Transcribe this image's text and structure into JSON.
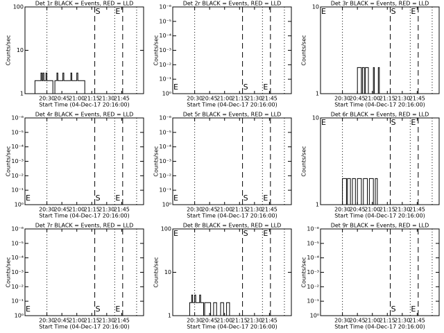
{
  "chart_data": [
    {
      "type": "line",
      "title": "Det 1r BLACK = Events, RED = LLD",
      "x_label": "Start Time (04-Dec-17 20:16:00)",
      "y_label": "Counts/sec",
      "log_y": true,
      "xlim": [
        -8,
        111
      ],
      "xticks": [
        {
          "value": 14,
          "label": "20:30"
        },
        {
          "value": 29,
          "label": "20:45"
        },
        {
          "value": 44,
          "label": "21:00"
        },
        {
          "value": 59,
          "label": "21:15"
        },
        {
          "value": 74,
          "label": "21:30"
        },
        {
          "value": 89,
          "label": "21:45"
        }
      ],
      "ylim": [
        1,
        100
      ],
      "yticks": [
        1,
        10,
        100
      ],
      "series": [
        {
          "color": "#000000",
          "x": [
            2,
            2,
            8,
            8,
            9,
            9,
            10,
            10,
            11,
            11,
            13,
            13,
            14,
            14,
            20,
            20,
            22,
            22,
            24,
            24,
            25,
            25,
            30,
            30,
            31,
            31,
            38,
            38,
            39,
            39,
            44,
            44,
            45,
            45,
            52,
            52
          ],
          "values": [
            1,
            2,
            2,
            3,
            3,
            2,
            2,
            3,
            3,
            2,
            2,
            3,
            3,
            2,
            2,
            1,
            1,
            2,
            2,
            3,
            3,
            2,
            2,
            3,
            3,
            2,
            2,
            3,
            3,
            2,
            2,
            3,
            3,
            2,
            2,
            1
          ]
        }
      ],
      "vlines": [
        {
          "x": 14,
          "style": "dotted"
        },
        {
          "x": 62,
          "style": "dashed"
        },
        {
          "x": 82,
          "style": "dotted"
        },
        {
          "x": 90,
          "style": "dashed"
        },
        {
          "x": 104,
          "style": "dotted"
        }
      ],
      "annotations": [
        {
          "text": "S",
          "x": 62
        },
        {
          "text": "E",
          "x": 82
        }
      ],
      "annotation_position": "top"
    },
    {
      "type": "line",
      "title": "Det 2r BLACK = Events, RED = LLD",
      "x_label": "Start Time (04-Dec-17 20:16:00)",
      "y_label": "Counts/sec",
      "log_y": true,
      "xlim": [
        -8,
        111
      ],
      "xticks": [
        {
          "value": 14,
          "label": "20:30"
        },
        {
          "value": 29,
          "label": "20:45"
        },
        {
          "value": 44,
          "label": "21:00"
        },
        {
          "value": 59,
          "label": "21:15"
        },
        {
          "value": 74,
          "label": "21:30"
        },
        {
          "value": 89,
          "label": "21:45"
        }
      ],
      "ylim": [
        1,
        1e-06
      ],
      "yticks": [
        {
          "value": 1,
          "label": "10⁰"
        },
        {
          "value": 0.1,
          "label": "10⁻¹"
        },
        {
          "value": 0.01,
          "label": "10⁻²"
        },
        {
          "value": 0.001,
          "label": "10⁻³"
        },
        {
          "value": 0.0001,
          "label": "10⁻⁴"
        },
        {
          "value": 1e-05,
          "label": "10⁻⁵"
        },
        {
          "value": 1e-06,
          "label": "10⁻⁶"
        }
      ],
      "series": [],
      "vlines": [
        {
          "x": 14,
          "style": "dotted"
        },
        {
          "x": 62,
          "style": "dashed"
        },
        {
          "x": 82,
          "style": "dotted"
        },
        {
          "x": 90,
          "style": "dashed"
        },
        {
          "x": 104,
          "style": "dotted"
        }
      ],
      "annotations": [
        {
          "text": "E",
          "x": -8
        },
        {
          "text": "S",
          "x": 62
        },
        {
          "text": "E",
          "x": 82
        }
      ],
      "annotation_position": "bottom"
    },
    {
      "type": "line",
      "title": "Det 3r BLACK = Events, RED = LLD",
      "x_label": "Start Time (04-Dec-17 20:16:00)",
      "y_label": "Counts/sec",
      "log_y": true,
      "xlim": [
        -8,
        111
      ],
      "xticks": [
        {
          "value": 14,
          "label": "20:30"
        },
        {
          "value": 29,
          "label": "20:45"
        },
        {
          "value": 44,
          "label": "21:00"
        },
        {
          "value": 59,
          "label": "21:15"
        },
        {
          "value": 74,
          "label": "21:30"
        },
        {
          "value": 89,
          "label": "21:45"
        }
      ],
      "ylim": [
        1,
        10
      ],
      "yticks": [
        1,
        10
      ],
      "series": [
        {
          "color": "#000000",
          "x": [
            29,
            29,
            33,
            33,
            34,
            34,
            36,
            36,
            37,
            37,
            40,
            40,
            45,
            45,
            46,
            46,
            50,
            50,
            51,
            51
          ],
          "values": [
            1,
            2,
            2,
            1,
            1,
            2,
            2,
            1,
            1,
            2,
            2,
            1,
            1,
            2,
            2,
            1,
            1,
            2,
            2,
            1
          ]
        }
      ],
      "vlines": [
        {
          "x": 14,
          "style": "dotted"
        },
        {
          "x": 62,
          "style": "dashed"
        },
        {
          "x": 82,
          "style": "dotted"
        },
        {
          "x": 90,
          "style": "dashed"
        },
        {
          "x": 104,
          "style": "dotted"
        }
      ],
      "annotations": [
        {
          "text": "E",
          "x": -8
        },
        {
          "text": "S",
          "x": 62
        },
        {
          "text": "E",
          "x": 82
        }
      ],
      "annotation_position": "top"
    },
    {
      "type": "line",
      "title": "Det 4r BLACK = Events, RED = LLD",
      "x_label": "Start Time (04-Dec-17 20:16:00)",
      "y_label": "Counts/sec",
      "log_y": true,
      "xlim": [
        -8,
        111
      ],
      "xticks": [
        {
          "value": 14,
          "label": "20:30"
        },
        {
          "value": 29,
          "label": "20:45"
        },
        {
          "value": 44,
          "label": "21:00"
        },
        {
          "value": 59,
          "label": "21:15"
        },
        {
          "value": 74,
          "label": "21:30"
        },
        {
          "value": 89,
          "label": "21:45"
        }
      ],
      "ylim": [
        1,
        1e-06
      ],
      "yticks": [
        {
          "value": 1,
          "label": "10⁰"
        },
        {
          "value": 0.1,
          "label": "10⁻¹"
        },
        {
          "value": 0.01,
          "label": "10⁻²"
        },
        {
          "value": 0.001,
          "label": "10⁻³"
        },
        {
          "value": 0.0001,
          "label": "10⁻⁴"
        },
        {
          "value": 1e-05,
          "label": "10⁻⁵"
        },
        {
          "value": 1e-06,
          "label": "10⁻⁶"
        }
      ],
      "series": [],
      "vlines": [
        {
          "x": 14,
          "style": "dotted"
        },
        {
          "x": 62,
          "style": "dashed"
        },
        {
          "x": 82,
          "style": "dotted"
        },
        {
          "x": 90,
          "style": "dashed"
        },
        {
          "x": 104,
          "style": "dotted"
        }
      ],
      "annotations": [
        {
          "text": "E",
          "x": -8
        },
        {
          "text": "S",
          "x": 62
        },
        {
          "text": "E",
          "x": 82
        }
      ],
      "annotation_position": "bottom"
    },
    {
      "type": "line",
      "title": "Det 5r BLACK = Events, RED = LLD",
      "x_label": "Start Time (04-Dec-17 20:16:00)",
      "y_label": "Counts/sec",
      "log_y": true,
      "xlim": [
        -8,
        111
      ],
      "xticks": [
        {
          "value": 14,
          "label": "20:30"
        },
        {
          "value": 29,
          "label": "20:45"
        },
        {
          "value": 44,
          "label": "21:00"
        },
        {
          "value": 59,
          "label": "21:15"
        },
        {
          "value": 74,
          "label": "21:30"
        },
        {
          "value": 89,
          "label": "21:45"
        }
      ],
      "ylim": [
        1,
        1e-06
      ],
      "yticks": [
        {
          "value": 1,
          "label": "10⁰"
        },
        {
          "value": 0.1,
          "label": "10⁻¹"
        },
        {
          "value": 0.01,
          "label": "10⁻²"
        },
        {
          "value": 0.001,
          "label": "10⁻³"
        },
        {
          "value": 0.0001,
          "label": "10⁻⁴"
        },
        {
          "value": 1e-05,
          "label": "10⁻⁵"
        },
        {
          "value": 1e-06,
          "label": "10⁻⁶"
        }
      ],
      "series": [],
      "vlines": [
        {
          "x": 14,
          "style": "dotted"
        },
        {
          "x": 62,
          "style": "dashed"
        },
        {
          "x": 82,
          "style": "dotted"
        },
        {
          "x": 90,
          "style": "dashed"
        },
        {
          "x": 104,
          "style": "dotted"
        }
      ],
      "annotations": [
        {
          "text": "E",
          "x": -8
        },
        {
          "text": "S",
          "x": 62
        },
        {
          "text": "E",
          "x": 82
        }
      ],
      "annotation_position": "bottom"
    },
    {
      "type": "line",
      "title": "Det 6r BLACK = Events, RED = LLD",
      "x_label": "Start Time (04-Dec-17 20:16:00)",
      "y_label": "Counts/sec",
      "log_y": true,
      "xlim": [
        -8,
        111
      ],
      "xticks": [
        {
          "value": 14,
          "label": "20:30"
        },
        {
          "value": 29,
          "label": "20:45"
        },
        {
          "value": 44,
          "label": "21:00"
        },
        {
          "value": 59,
          "label": "21:15"
        },
        {
          "value": 74,
          "label": "21:30"
        },
        {
          "value": 89,
          "label": "21:45"
        }
      ],
      "ylim": [
        1,
        10
      ],
      "yticks": [
        1,
        10
      ],
      "series": [
        {
          "color": "#000000",
          "x": [
            14,
            14,
            18,
            18,
            19,
            19,
            22,
            22,
            24,
            24,
            27,
            27,
            29,
            29,
            33,
            33,
            35,
            35,
            39,
            39,
            41,
            41,
            45,
            45,
            47,
            47,
            49,
            49
          ],
          "values": [
            1,
            2,
            2,
            1,
            1,
            2,
            2,
            1,
            1,
            2,
            2,
            1,
            1,
            2,
            2,
            1,
            1,
            2,
            2,
            1,
            1,
            2,
            2,
            1,
            1,
            2,
            2,
            1
          ]
        }
      ],
      "vlines": [
        {
          "x": 14,
          "style": "dotted"
        },
        {
          "x": 62,
          "style": "dashed"
        },
        {
          "x": 82,
          "style": "dotted"
        },
        {
          "x": 90,
          "style": "dashed"
        },
        {
          "x": 104,
          "style": "dotted"
        }
      ],
      "annotations": [
        {
          "text": "E",
          "x": -8
        },
        {
          "text": "S",
          "x": 62
        },
        {
          "text": "E",
          "x": 82
        }
      ],
      "annotation_position": "top"
    },
    {
      "type": "line",
      "title": "Det 7r BLACK = Events, RED = LLD",
      "x_label": "Start Time (04-Dec-17 20:16:00)",
      "y_label": "Counts/sec",
      "log_y": true,
      "xlim": [
        -8,
        111
      ],
      "xticks": [
        {
          "value": 14,
          "label": "20:30"
        },
        {
          "value": 29,
          "label": "20:45"
        },
        {
          "value": 44,
          "label": "21:00"
        },
        {
          "value": 59,
          "label": "21:15"
        },
        {
          "value": 74,
          "label": "21:30"
        },
        {
          "value": 89,
          "label": "21:45"
        }
      ],
      "ylim": [
        1,
        1e-06
      ],
      "yticks": [
        {
          "value": 1,
          "label": "10⁰"
        },
        {
          "value": 0.1,
          "label": "10⁻¹"
        },
        {
          "value": 0.01,
          "label": "10⁻²"
        },
        {
          "value": 0.001,
          "label": "10⁻³"
        },
        {
          "value": 0.0001,
          "label": "10⁻⁴"
        },
        {
          "value": 1e-05,
          "label": "10⁻⁵"
        },
        {
          "value": 1e-06,
          "label": "10⁻⁶"
        }
      ],
      "series": [],
      "vlines": [
        {
          "x": 14,
          "style": "dotted"
        },
        {
          "x": 62,
          "style": "dashed"
        },
        {
          "x": 82,
          "style": "dotted"
        },
        {
          "x": 90,
          "style": "dashed"
        },
        {
          "x": 104,
          "style": "dotted"
        }
      ],
      "annotations": [
        {
          "text": "E",
          "x": -8
        },
        {
          "text": "S",
          "x": 62
        },
        {
          "text": "E",
          "x": 82
        }
      ],
      "annotation_position": "bottom"
    },
    {
      "type": "line",
      "title": "Det 8r BLACK = Events, RED = LLD",
      "x_label": "Start Time (04-Dec-17 20:16:00)",
      "y_label": "Counts/sec",
      "log_y": true,
      "xlim": [
        -8,
        111
      ],
      "xticks": [
        {
          "value": 14,
          "label": "20:30"
        },
        {
          "value": 29,
          "label": "20:45"
        },
        {
          "value": 44,
          "label": "21:00"
        },
        {
          "value": 59,
          "label": "21:15"
        },
        {
          "value": 74,
          "label": "21:30"
        },
        {
          "value": 89,
          "label": "21:45"
        }
      ],
      "ylim": [
        1,
        100
      ],
      "yticks": [
        1,
        10,
        100
      ],
      "series": [
        {
          "color": "#000000",
          "x": [
            9,
            9,
            11,
            11,
            12,
            12,
            14,
            14,
            15,
            15,
            19,
            19,
            20,
            20,
            23,
            23,
            24,
            24,
            30,
            30,
            33,
            33,
            36,
            36,
            40,
            40,
            43,
            43,
            46,
            46,
            49,
            49
          ],
          "values": [
            1,
            2,
            2,
            3,
            3,
            2,
            2,
            3,
            3,
            2,
            2,
            3,
            3,
            2,
            2,
            1,
            1,
            2,
            2,
            1,
            1,
            2,
            2,
            1,
            1,
            2,
            2,
            1,
            1,
            2,
            2,
            1
          ]
        }
      ],
      "vlines": [
        {
          "x": 14,
          "style": "dotted"
        },
        {
          "x": 62,
          "style": "dashed"
        },
        {
          "x": 82,
          "style": "dotted"
        },
        {
          "x": 90,
          "style": "dashed"
        },
        {
          "x": 104,
          "style": "dotted"
        }
      ],
      "annotations": [
        {
          "text": "E",
          "x": -8
        },
        {
          "text": "S",
          "x": 62
        },
        {
          "text": "E",
          "x": 82
        }
      ],
      "annotation_position": "top"
    },
    {
      "type": "line",
      "title": "Det 9r BLACK = Events, RED = LLD",
      "x_label": "Start Time (04-Dec-17 20:16:00)",
      "y_label": "Counts/sec",
      "log_y": true,
      "xlim": [
        -8,
        111
      ],
      "xticks": [
        {
          "value": 14,
          "label": "20:30"
        },
        {
          "value": 29,
          "label": "20:45"
        },
        {
          "value": 44,
          "label": "21:00"
        },
        {
          "value": 59,
          "label": "21:15"
        },
        {
          "value": 74,
          "label": "21:30"
        },
        {
          "value": 89,
          "label": "21:45"
        }
      ],
      "ylim": [
        1,
        1e-06
      ],
      "yticks": [
        {
          "value": 1,
          "label": "10⁰"
        },
        {
          "value": 0.1,
          "label": "10⁻¹"
        },
        {
          "value": 0.01,
          "label": "10⁻²"
        },
        {
          "value": 0.001,
          "label": "10⁻³"
        },
        {
          "value": 0.0001,
          "label": "10⁻⁴"
        },
        {
          "value": 1e-05,
          "label": "10⁻⁵"
        },
        {
          "value": 1e-06,
          "label": "10⁻⁶"
        }
      ],
      "series": [],
      "vlines": [
        {
          "x": 14,
          "style": "dotted"
        },
        {
          "x": 62,
          "style": "dashed"
        },
        {
          "x": 82,
          "style": "dotted"
        },
        {
          "x": 90,
          "style": "dashed"
        },
        {
          "x": 104,
          "style": "dotted"
        }
      ],
      "annotations": [
        {
          "text": "S",
          "x": 62
        },
        {
          "text": "E",
          "x": 82
        }
      ],
      "annotation_position": "bottom"
    }
  ]
}
